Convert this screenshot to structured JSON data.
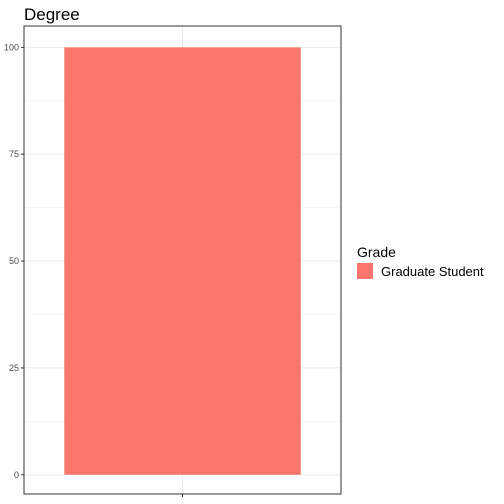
{
  "chart_data": {
    "type": "bar",
    "title": "Degree",
    "xlabel": "",
    "ylabel": "",
    "categories": [
      ""
    ],
    "series": [
      {
        "name": "Graduate Student",
        "values": [
          100
        ],
        "color": "#F8766D"
      }
    ],
    "ylim": [
      -4.5,
      105
    ],
    "yticks": [
      0,
      25,
      50,
      75,
      100
    ],
    "grid": true,
    "legend": {
      "title": "Grade",
      "position": "right"
    }
  }
}
